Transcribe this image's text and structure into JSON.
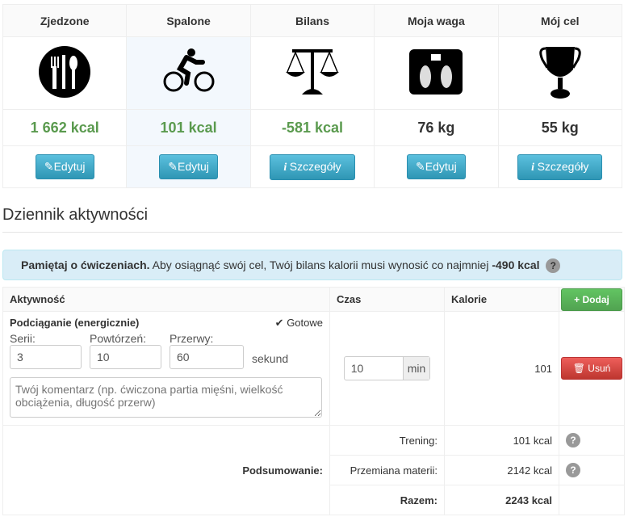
{
  "summary": [
    {
      "title": "Zjedzone",
      "icon": "utensils-icon",
      "value": "1 662 kcal",
      "button": "Edytuj",
      "button_icon": "pencil-icon"
    },
    {
      "title": "Spalone",
      "icon": "cyclist-icon",
      "value": "101 kcal",
      "button": "Edytuj",
      "button_icon": "pencil-icon"
    },
    {
      "title": "Bilans",
      "icon": "scales-icon",
      "value": "-581 kcal",
      "button": "Szczegóły",
      "button_icon": "info-icon"
    },
    {
      "title": "Moja waga",
      "icon": "bathroom-scale-icon",
      "value": "76 kg",
      "button": "Edytuj",
      "button_icon": "pencil-icon"
    },
    {
      "title": "Mój cel",
      "icon": "trophy-icon",
      "value": "55 kg",
      "button": "Szczegóły",
      "button_icon": "info-icon"
    }
  ],
  "heading": "Dziennik aktywności",
  "alert": {
    "bold": "Pamiętaj o ćwiczeniach.",
    "text": " Aby osiągnąć swój cel, Twój bilans kalorii musi wynosić co najmniej ",
    "value": "-490 kcal"
  },
  "table": {
    "headers": {
      "activity": "Aktywność",
      "time": "Czas",
      "calories": "Kalorie",
      "add": "Dodaj"
    },
    "row": {
      "name": "Podciąganie (energicznie)",
      "done": "Gotowe",
      "series_label": "Serii:",
      "series": "3",
      "reps_label": "Powtórzeń:",
      "reps": "10",
      "rest_label": "Przerwy:",
      "rest": "60",
      "rest_unit": "sekund",
      "comment_placeholder": "Twój komentarz (np. ćwiczona partia mięśni, wielkość obciążenia, długość przerw)",
      "time": "10",
      "time_unit": "min",
      "calories": "101",
      "delete": "Usuń"
    },
    "summary_label": "Podsumowanie:",
    "summary": [
      {
        "label": "Trening:",
        "value": "101 kcal"
      },
      {
        "label": "Przemiana materii:",
        "value": "2142 kcal"
      },
      {
        "label": "Razem:",
        "value": "2243 kcal"
      }
    ]
  },
  "colors": {
    "green": "#5a9a4e",
    "info": "#2f96b4",
    "success": "#5cb85c",
    "danger": "#d9534f"
  }
}
